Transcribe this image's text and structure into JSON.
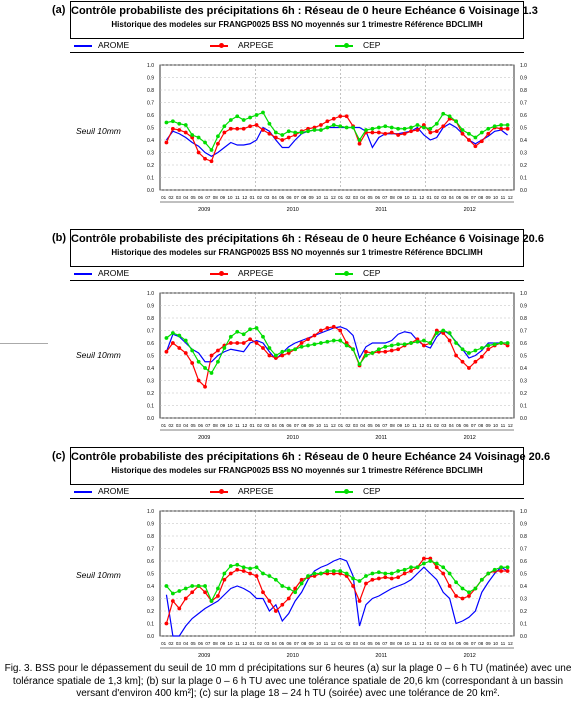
{
  "colors": {
    "arome": "#0000ff",
    "arpege": "#ff0000",
    "cep": "#00dd00"
  },
  "caption": "Fig. 3. BSS pour le dépassement du seuil de 10 mm d précipitations sur 6 heures (a) sur la plage 0 – 6 h TU (matinée) avec une tolérance spatiale de 1,3 km]; (b) sur la plage 0 – 6 h TU avec une tolérance spatiale de 20,6 km (correspondant à un bassin versant d'environ 400 km²]; (c) sur la plage 18 – 24 h TU (soirée) avec une tolérance de 20 km².",
  "chart_data": [
    {
      "type": "line",
      "panel_label": "(a)",
      "title": "Contrôle probabiliste des précipitations 6h :  Réseau de 0 heure Echéance 6 Voisinage 1.3",
      "subtitle": "Historique des modeles sur FRANGP0025 BSS NO moyennés sur 1 trimestre  Référence BDCLIMH",
      "ylabel": "Seuil 10mm",
      "ylim": [
        0,
        1.0
      ],
      "yticks": [
        "0.0",
        "0.1",
        "0.2",
        "0.3",
        "0.4",
        "0.5",
        "0.6",
        "0.7",
        "0.8",
        "0.9",
        "1.0"
      ],
      "x_months": [
        "01",
        "02",
        "03",
        "04",
        "05",
        "06",
        "07",
        "08",
        "09",
        "10",
        "11",
        "12",
        "01",
        "02",
        "03",
        "04",
        "05",
        "06",
        "07",
        "08",
        "09",
        "10",
        "11",
        "12",
        "01",
        "02",
        "03",
        "04",
        "05",
        "06",
        "07",
        "08",
        "09",
        "10",
        "11",
        "12",
        "01",
        "02",
        "03",
        "04",
        "05",
        "06",
        "07",
        "08",
        "09",
        "10",
        "11",
        "12"
      ],
      "years": [
        "2009",
        "2010",
        "2011",
        "2012"
      ],
      "series": [
        {
          "name": "AROME",
          "key": "arome",
          "start": 2,
          "values": [
            0.4,
            0.47,
            0.45,
            0.42,
            0.38,
            0.35,
            0.3,
            0.27,
            0.3,
            0.34,
            0.38,
            0.36,
            0.36,
            0.37,
            0.4,
            0.5,
            0.47,
            0.4,
            0.34,
            0.34,
            0.4,
            0.45,
            0.47,
            0.48,
            0.48,
            0.5,
            0.5,
            0.5,
            0.5,
            0.5,
            0.5,
            0.47,
            0.34,
            0.42,
            0.45,
            0.45,
            0.45,
            0.46,
            0.47,
            0.5,
            0.44,
            0.4,
            0.42,
            0.5,
            0.53,
            0.5,
            0.45,
            0.4,
            0.37,
            0.4,
            0.43,
            0.47,
            0.48,
            0.44
          ]
        },
        {
          "name": "ARPEGE",
          "key": "arpege",
          "start": 2,
          "values": [
            0.38,
            0.49,
            0.48,
            0.46,
            0.42,
            0.3,
            0.25,
            0.23,
            0.37,
            0.46,
            0.49,
            0.49,
            0.49,
            0.51,
            0.52,
            0.48,
            0.45,
            0.42,
            0.4,
            0.42,
            0.44,
            0.47,
            0.49,
            0.5,
            0.52,
            0.55,
            0.57,
            0.59,
            0.59,
            0.51,
            0.37,
            0.46,
            0.46,
            0.46,
            0.45,
            0.46,
            0.44,
            0.45,
            0.47,
            0.48,
            0.52,
            0.46,
            0.47,
            0.51,
            0.57,
            0.55,
            0.45,
            0.4,
            0.35,
            0.39,
            0.45,
            0.5,
            0.49,
            0.49
          ]
        },
        {
          "name": "CEP",
          "key": "cep",
          "start": 2,
          "values": [
            0.54,
            0.55,
            0.53,
            0.52,
            0.44,
            0.42,
            0.38,
            0.32,
            0.43,
            0.51,
            0.56,
            0.59,
            0.56,
            0.58,
            0.6,
            0.62,
            0.53,
            0.46,
            0.44,
            0.47,
            0.46,
            0.46,
            0.47,
            0.48,
            0.48,
            0.5,
            0.52,
            0.51,
            0.5,
            0.5,
            0.4,
            0.48,
            0.49,
            0.5,
            0.51,
            0.5,
            0.49,
            0.49,
            0.5,
            0.52,
            0.5,
            0.49,
            0.53,
            0.61,
            0.59,
            0.55,
            0.48,
            0.45,
            0.42,
            0.46,
            0.49,
            0.51,
            0.52,
            0.52
          ]
        }
      ]
    },
    {
      "type": "line",
      "panel_label": "(b)",
      "title": "Contrôle probabiliste des précipitations 6h :  Réseau de 0 heure Echéance 6 Voisinage 20.6",
      "subtitle": "Historique des modeles sur FRANGP0025 BSS NO moyennés sur 1 trimestre  Référence BDCLIMH",
      "ylabel": "Seuil 10mm",
      "ylim": [
        0,
        1.0
      ],
      "yticks": [
        "0.0",
        "0.1",
        "0.2",
        "0.3",
        "0.4",
        "0.5",
        "0.6",
        "0.7",
        "0.8",
        "0.9",
        "1.0"
      ],
      "x_months": [
        "01",
        "02",
        "03",
        "04",
        "05",
        "06",
        "07",
        "08",
        "09",
        "10",
        "11",
        "12",
        "01",
        "02",
        "03",
        "04",
        "05",
        "06",
        "07",
        "08",
        "09",
        "10",
        "11",
        "12",
        "01",
        "02",
        "03",
        "04",
        "05",
        "06",
        "07",
        "08",
        "09",
        "10",
        "11",
        "12",
        "01",
        "02",
        "03",
        "04",
        "05",
        "06",
        "07",
        "08",
        "09",
        "10",
        "11",
        "12"
      ],
      "years": [
        "2009",
        "2010",
        "2011",
        "2012"
      ],
      "series": [
        {
          "name": "AROME",
          "key": "arome",
          "start": 2,
          "values": [
            0.53,
            0.67,
            0.65,
            0.6,
            0.55,
            0.52,
            0.45,
            0.45,
            0.5,
            0.53,
            0.55,
            0.54,
            0.53,
            0.6,
            0.62,
            0.6,
            0.53,
            0.47,
            0.52,
            0.57,
            0.6,
            0.62,
            0.64,
            0.66,
            0.68,
            0.7,
            0.72,
            0.73,
            0.71,
            0.66,
            0.48,
            0.57,
            0.6,
            0.6,
            0.6,
            0.62,
            0.67,
            0.69,
            0.68,
            0.62,
            0.58,
            0.56,
            0.65,
            0.7,
            0.67,
            0.61,
            0.55,
            0.48,
            0.5,
            0.54,
            0.6,
            0.6,
            0.6,
            0.6
          ]
        },
        {
          "name": "ARPEGE",
          "key": "arpege",
          "start": 2,
          "values": [
            0.53,
            0.6,
            0.56,
            0.52,
            0.44,
            0.3,
            0.25,
            0.5,
            0.54,
            0.58,
            0.6,
            0.6,
            0.6,
            0.63,
            0.6,
            0.56,
            0.5,
            0.48,
            0.5,
            0.52,
            0.55,
            0.6,
            0.63,
            0.66,
            0.7,
            0.72,
            0.73,
            0.7,
            0.6,
            0.55,
            0.42,
            0.53,
            0.52,
            0.53,
            0.53,
            0.54,
            0.55,
            0.58,
            0.6,
            0.63,
            0.58,
            0.6,
            0.7,
            0.68,
            0.62,
            0.5,
            0.45,
            0.4,
            0.45,
            0.49,
            0.55,
            0.58,
            0.6,
            0.58
          ]
        },
        {
          "name": "CEP",
          "key": "cep",
          "start": 2,
          "values": [
            0.64,
            0.68,
            0.66,
            0.62,
            0.54,
            0.45,
            0.4,
            0.36,
            0.45,
            0.56,
            0.65,
            0.69,
            0.67,
            0.71,
            0.72,
            0.65,
            0.56,
            0.5,
            0.53,
            0.54,
            0.55,
            0.57,
            0.58,
            0.59,
            0.6,
            0.61,
            0.62,
            0.62,
            0.58,
            0.55,
            0.43,
            0.5,
            0.52,
            0.55,
            0.57,
            0.58,
            0.59,
            0.59,
            0.6,
            0.61,
            0.62,
            0.6,
            0.68,
            0.7,
            0.68,
            0.6,
            0.55,
            0.52,
            0.54,
            0.56,
            0.58,
            0.59,
            0.6,
            0.6
          ]
        }
      ]
    },
    {
      "type": "line",
      "panel_label": "(c)",
      "title": "Contrôle probabiliste des précipitations 6h :  Réseau de 0 heure Echéance 24 Voisinage 20.6",
      "subtitle": "Historique des modeles sur FRANGP0025 BSS NO moyennés sur 1 trimestre  Référence BDCLIMH",
      "ylabel": "Seuil 10mm",
      "ylim": [
        0,
        1.0
      ],
      "yticks": [
        "0.0",
        "0.1",
        "0.2",
        "0.3",
        "0.4",
        "0.5",
        "0.6",
        "0.7",
        "0.8",
        "0.9",
        "1.0"
      ],
      "x_months": [
        "01",
        "02",
        "03",
        "04",
        "05",
        "06",
        "07",
        "08",
        "09",
        "10",
        "11",
        "12",
        "01",
        "02",
        "03",
        "04",
        "05",
        "06",
        "07",
        "08",
        "09",
        "10",
        "11",
        "12",
        "01",
        "02",
        "03",
        "04",
        "05",
        "06",
        "07",
        "08",
        "09",
        "10",
        "11",
        "12",
        "01",
        "02",
        "03",
        "04",
        "05",
        "06",
        "07",
        "08",
        "09",
        "10",
        "11",
        "12"
      ],
      "years": [
        "2009",
        "2010",
        "2011",
        "2012"
      ],
      "series": [
        {
          "name": "AROME",
          "key": "arome",
          "start": 2,
          "values": [
            0.33,
            0.0,
            0.0,
            0.08,
            0.14,
            0.18,
            0.22,
            0.25,
            0.28,
            0.33,
            0.38,
            0.4,
            0.38,
            0.35,
            0.3,
            0.3,
            0.2,
            0.25,
            0.12,
            0.18,
            0.28,
            0.35,
            0.45,
            0.52,
            0.55,
            0.57,
            0.6,
            0.62,
            0.6,
            0.48,
            0.08,
            0.25,
            0.3,
            0.32,
            0.35,
            0.38,
            0.4,
            0.42,
            0.45,
            0.5,
            0.55,
            0.5,
            0.45,
            0.35,
            0.3,
            0.1,
            0.12,
            0.15,
            0.2,
            0.35,
            0.43,
            0.5,
            0.55,
            0.52
          ]
        },
        {
          "name": "ARPEGE",
          "key": "arpege",
          "start": 2,
          "values": [
            0.1,
            0.28,
            0.22,
            0.3,
            0.35,
            0.4,
            0.35,
            0.28,
            0.32,
            0.45,
            0.5,
            0.53,
            0.52,
            0.5,
            0.48,
            0.35,
            0.28,
            0.2,
            0.25,
            0.3,
            0.38,
            0.45,
            0.47,
            0.48,
            0.5,
            0.5,
            0.5,
            0.5,
            0.48,
            0.4,
            0.28,
            0.42,
            0.45,
            0.46,
            0.47,
            0.46,
            0.47,
            0.5,
            0.52,
            0.55,
            0.62,
            0.62,
            0.55,
            0.5,
            0.4,
            0.32,
            0.3,
            0.32,
            0.38,
            0.45,
            0.5,
            0.52,
            0.52,
            0.52
          ]
        },
        {
          "name": "CEP",
          "key": "cep",
          "start": 2,
          "values": [
            0.4,
            0.34,
            0.36,
            0.38,
            0.4,
            0.4,
            0.4,
            0.28,
            0.38,
            0.5,
            0.56,
            0.57,
            0.55,
            0.54,
            0.55,
            0.5,
            0.48,
            0.45,
            0.4,
            0.38,
            0.35,
            0.42,
            0.48,
            0.5,
            0.5,
            0.52,
            0.52,
            0.52,
            0.5,
            0.46,
            0.44,
            0.48,
            0.5,
            0.51,
            0.5,
            0.5,
            0.52,
            0.53,
            0.55,
            0.55,
            0.58,
            0.6,
            0.58,
            0.55,
            0.5,
            0.43,
            0.38,
            0.35,
            0.38,
            0.45,
            0.5,
            0.53,
            0.55,
            0.55
          ]
        }
      ]
    }
  ]
}
